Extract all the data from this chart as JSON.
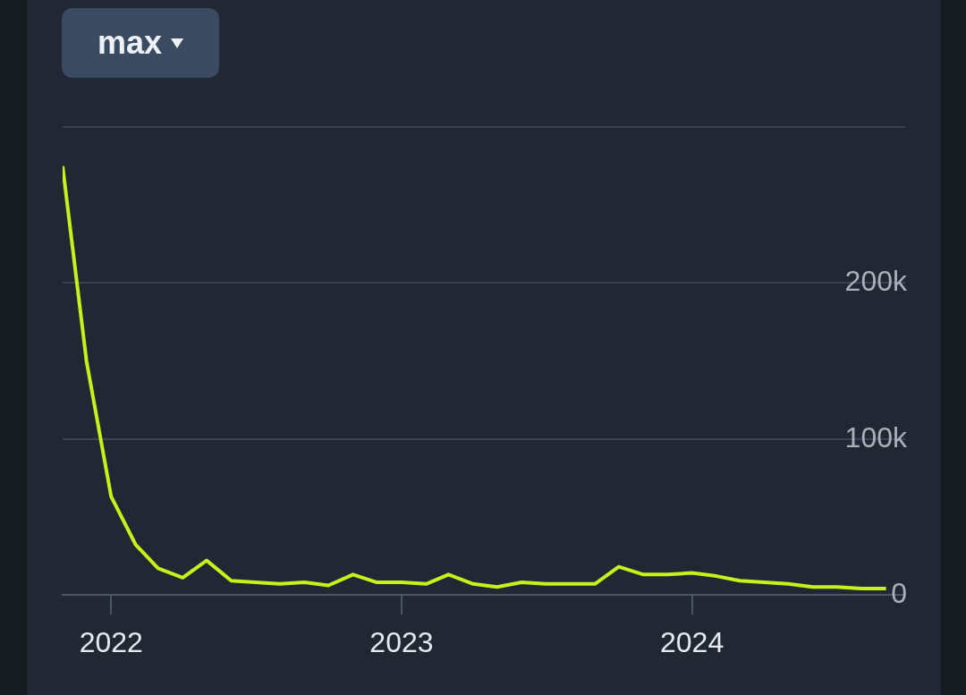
{
  "chart_data": {
    "type": "line",
    "annotations": [
      "max"
    ],
    "x": [
      "2021-11",
      "2021-12",
      "2022-01",
      "2022-02",
      "2022-03",
      "2022-04",
      "2022-05",
      "2022-06",
      "2022-07",
      "2022-08",
      "2022-09",
      "2022-10",
      "2022-11",
      "2022-12",
      "2023-01",
      "2023-02",
      "2023-03",
      "2023-04",
      "2023-05",
      "2023-06",
      "2023-07",
      "2023-08",
      "2023-09",
      "2023-10",
      "2023-11",
      "2023-12",
      "2024-01",
      "2024-02",
      "2024-03",
      "2024-04",
      "2024-05",
      "2024-06",
      "2024-07",
      "2024-08",
      "2024-09"
    ],
    "series": [
      {
        "color": "#c6f21c",
        "values": [
          275000,
          150000,
          63000,
          32000,
          17000,
          11000,
          22000,
          9000,
          8000,
          7000,
          8000,
          6000,
          13000,
          8000,
          8000,
          7000,
          13000,
          7000,
          5000,
          8000,
          7000,
          7000,
          7000,
          18000,
          13000,
          13000,
          14000,
          12000,
          9000,
          8000,
          7000,
          5000,
          5000,
          4000,
          4000
        ]
      }
    ],
    "xlim": [
      "2021-11-01",
      "2024-09-25"
    ],
    "xticks": [
      {
        "value": "2022",
        "label": "2022"
      },
      {
        "value": "2023",
        "label": "2023"
      },
      {
        "value": "2024",
        "label": "2024"
      }
    ],
    "ylim": [
      0,
      300000
    ],
    "yticks": [
      {
        "value": 0,
        "label": "0"
      },
      {
        "value": 100000,
        "label": "100k"
      },
      {
        "value": 200000,
        "label": "200k"
      },
      {
        "value": 300000,
        "label": null
      }
    ],
    "grid": "y",
    "legend": false,
    "marker": "none",
    "line_style": "solid"
  }
}
